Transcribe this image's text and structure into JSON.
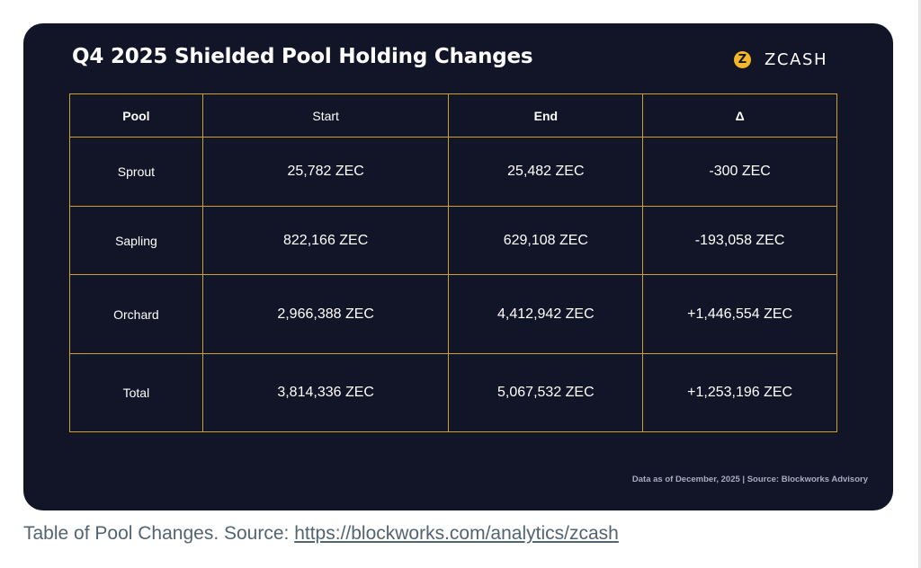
{
  "card": {
    "title": "Q4 2025 Shielded Pool Holding Changes",
    "brand": "ZCASH",
    "logo_glyph": "Z",
    "footnote": "Data as of December, 2025 | Source: Blockworks Advisory"
  },
  "chart_data": {
    "type": "table",
    "title": "Q4 2025 Shielded Pool Holding Changes",
    "columns": [
      "Pool",
      "Start",
      "End",
      "Δ"
    ],
    "rows": [
      [
        "Sprout",
        "25,782 ZEC",
        "25,482 ZEC",
        "-300 ZEC"
      ],
      [
        "Sapling",
        "822,166 ZEC",
        "629,108 ZEC",
        "-193,058 ZEC"
      ],
      [
        "Orchard",
        "2,966,388 ZEC",
        "4,412,942 ZEC",
        "+1,446,554 ZEC"
      ],
      [
        "Total",
        "3,814,336 ZEC",
        "5,067,532 ZEC",
        "+1,253,196 ZEC"
      ]
    ]
  },
  "caption": {
    "text": "Table of Pool Changes. Source: ",
    "link": "https://blockworks.com/analytics/zcash"
  },
  "colors": {
    "card_background": "#121428",
    "table_border": "#c9a227",
    "logo": "#f4b728"
  }
}
